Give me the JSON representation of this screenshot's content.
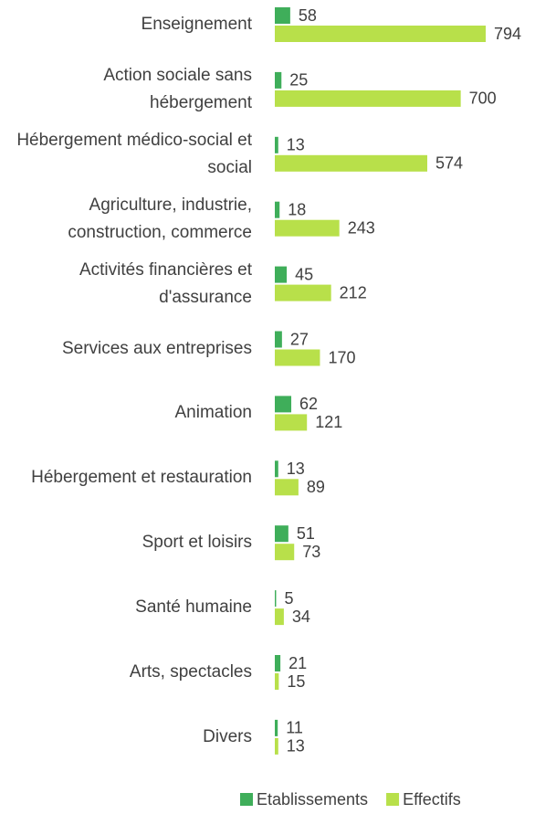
{
  "chart_data": {
    "type": "bar",
    "orientation": "horizontal",
    "categories": [
      "Enseignement",
      "Action sociale sans hébergement",
      "Hébergement médico-social et social",
      "Agriculture, industrie, construction, commerce",
      "Activités financières et d'assurance",
      "Services aux entreprises",
      "Animation",
      "Hébergement et restauration",
      "Sport et loisirs",
      "Santé humaine",
      "Arts, spectacles",
      "Divers"
    ],
    "series": [
      {
        "name": "Etablissements",
        "color": "#3fae5a",
        "values": [
          58,
          25,
          13,
          18,
          45,
          27,
          62,
          13,
          51,
          5,
          21,
          11
        ]
      },
      {
        "name": "Effectifs",
        "color": "#b8e04a",
        "values": [
          794,
          700,
          574,
          243,
          212,
          170,
          121,
          89,
          73,
          34,
          15,
          13
        ]
      }
    ],
    "legend": "bottom"
  }
}
